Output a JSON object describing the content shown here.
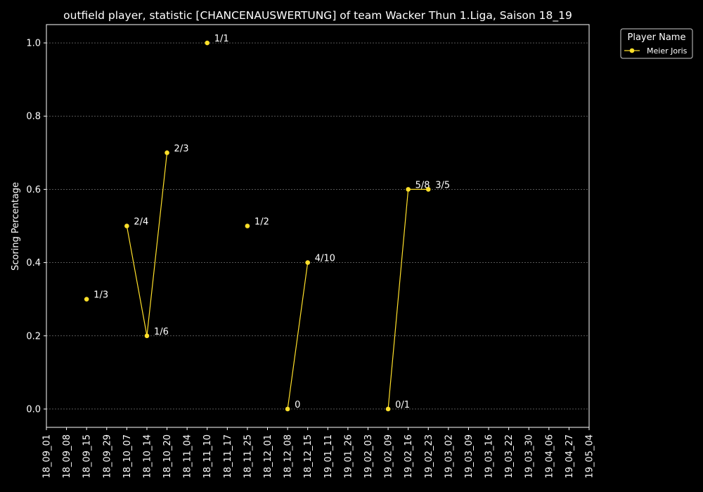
{
  "chart_data": {
    "type": "line",
    "title": "outfield player, statistic [CHANCENAUSWERTUNG] of team Wacker Thun 1.Liga, Saison 18_19",
    "ylabel": "Scoring Percentage",
    "xlabel": "",
    "ylim": [
      -0.05,
      1.05
    ],
    "yticks": [
      "0.0",
      "0.2",
      "0.4",
      "0.6",
      "0.8",
      "1.0"
    ],
    "ytick_values": [
      0.0,
      0.2,
      0.4,
      0.6,
      0.8,
      1.0
    ],
    "x_categories": [
      "18_09_01",
      "18_09_08",
      "18_09_15",
      "18_09_29",
      "18_10_07",
      "18_10_14",
      "18_10_20",
      "18_11_04",
      "18_11_10",
      "18_11_17",
      "18_11_25",
      "18_12_01",
      "18_12_08",
      "18_12_15",
      "19_01_11",
      "19_01_26",
      "19_02_03",
      "19_02_09",
      "19_02_16",
      "19_02_23",
      "19_03_02",
      "19_03_09",
      "19_03_16",
      "19_03_22",
      "19_03_30",
      "19_04_06",
      "19_04_27",
      "19_05_04"
    ],
    "grid": true,
    "legend": {
      "title": "Player Name",
      "position": "top-right outside"
    },
    "series": [
      {
        "name": "Meier Joris",
        "color": "#ffe02a",
        "points": [
          {
            "x": "18_09_15",
            "y": 0.3,
            "label": "1/3",
            "connect": false
          },
          {
            "x": "18_10_07",
            "y": 0.5,
            "label": "2/4",
            "connect": false
          },
          {
            "x": "18_10_14",
            "y": 0.2,
            "label": "1/6",
            "connect": true
          },
          {
            "x": "18_10_20",
            "y": 0.7,
            "label": "2/3",
            "connect": true
          },
          {
            "x": "18_11_10",
            "y": 1.0,
            "label": "1/1",
            "connect": false
          },
          {
            "x": "18_11_25",
            "y": 0.5,
            "label": "1/2",
            "connect": false
          },
          {
            "x": "18_12_08",
            "y": 0.0,
            "label": "0",
            "connect": false
          },
          {
            "x": "18_12_15",
            "y": 0.4,
            "label": "4/10",
            "connect": true
          },
          {
            "x": "19_02_09",
            "y": 0.0,
            "label": "0/1",
            "connect": false
          },
          {
            "x": "19_02_16",
            "y": 0.6,
            "label": "5/8",
            "connect": true
          },
          {
            "x": "19_02_23",
            "y": 0.6,
            "label": "3/5",
            "connect": true
          }
        ]
      }
    ]
  }
}
